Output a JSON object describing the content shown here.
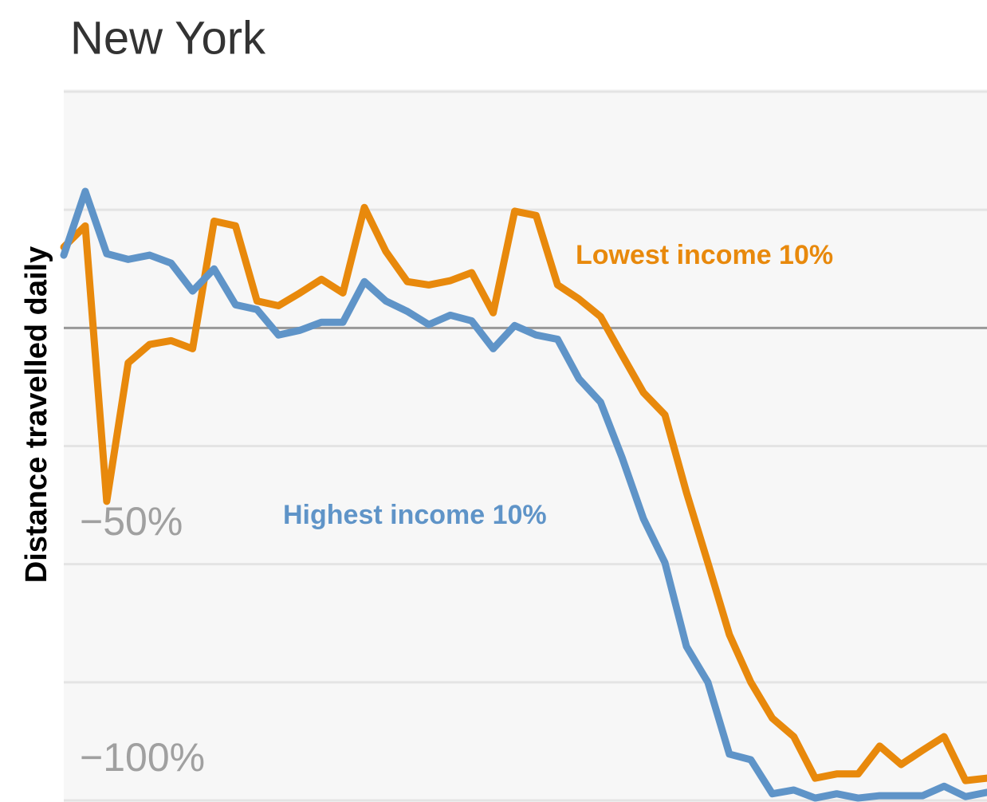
{
  "chart_data": {
    "type": "line",
    "title": "New York",
    "y_label": "Distance travelled daily",
    "ylim": [
      -100,
      50
    ],
    "yticks": [
      {
        "value": -100,
        "label": "−100%"
      },
      {
        "value": -50,
        "label": "−50%"
      }
    ],
    "minor_yticks": [
      -75,
      -25,
      0,
      25,
      50
    ],
    "zero_line": true,
    "grid": true,
    "series": [
      {
        "name": "Lowest income 10%",
        "color": "#e8890c",
        "values": [
          17.1,
          21.6,
          -36.7,
          -7.4,
          -3.5,
          -2.7,
          -4.4,
          22.6,
          21.6,
          5.7,
          4.7,
          7.4,
          10.3,
          7.4,
          25.5,
          16.2,
          9.8,
          9.1,
          10,
          11.7,
          3.2,
          24.7,
          23.8,
          9.1,
          6.1,
          2.4,
          -5.7,
          -13.7,
          -18.4,
          -34.8,
          -49.7,
          -64.9,
          -75,
          -82.6,
          -86.5,
          -95.3,
          -94.4,
          -94.4,
          -88.5,
          -92.4,
          -89.4,
          -86.5,
          -95.8,
          -95.3
        ]
      },
      {
        "name": "Highest income 10%",
        "color": "#5f94c8",
        "values": [
          15.4,
          28.9,
          15.7,
          14.5,
          15.4,
          13.7,
          7.8,
          12.5,
          4.9,
          3.9,
          -1.5,
          -0.5,
          1.2,
          1.2,
          9.8,
          5.7,
          3.5,
          0.7,
          2.7,
          1.5,
          -4.4,
          0.5,
          -1.5,
          -2.4,
          -10.8,
          -15.7,
          -27.4,
          -40.4,
          -49.7,
          -67.4,
          -75,
          -90.2,
          -91.4,
          -98.6,
          -97.8,
          -99.5,
          -98.6,
          -99.5,
          -99,
          -99,
          -99,
          -97,
          -99.2,
          -98.3
        ]
      }
    ]
  }
}
